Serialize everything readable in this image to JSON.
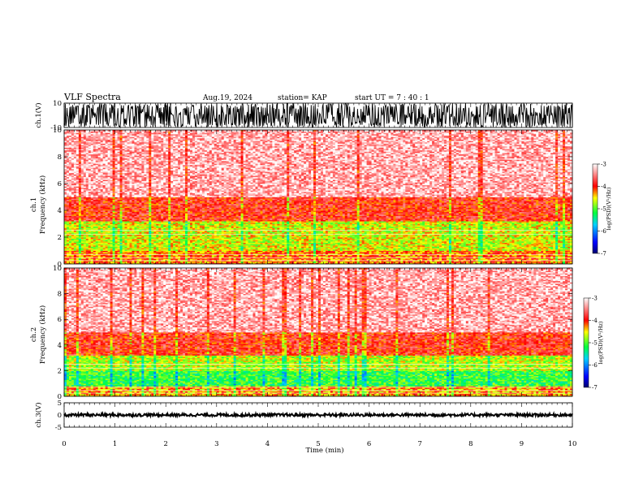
{
  "header": {
    "title": "VLF Spectra",
    "date": "Aug.19, 2024",
    "station": "station= KAP",
    "start": "start  UT =   7 : 40 : 1"
  },
  "chart_data": [
    {
      "type": "line",
      "panel": "ch1-waveform",
      "ylabel": "ch.1(V)",
      "ylim": [
        -10,
        10
      ],
      "yticks": [
        {
          "v": 10,
          "label": "10"
        },
        {
          "v": -10,
          "label": "-10"
        }
      ],
      "xlim": [
        0,
        10
      ],
      "description_values": {
        "amplitude_range": [
          -10,
          10
        ]
      }
    },
    {
      "type": "heatmap",
      "panel": "ch1-spectrogram",
      "ylabel": "ch.1\nFrequency (kHz)",
      "ylabel_line1": "ch.1",
      "ylabel_line2": "Frequency  (kHz)",
      "ylim": [
        0,
        10
      ],
      "yticks": [
        "0",
        "2",
        "4",
        "6",
        "8",
        "10"
      ],
      "xlim": [
        0,
        10
      ],
      "bands": [
        {
          "f": [
            0.0,
            1.0
          ],
          "log_psd": -4.2
        },
        {
          "f": [
            1.0,
            3.2
          ],
          "log_psd": -4.6
        },
        {
          "f": [
            3.2,
            5.0
          ],
          "log_psd": -3.9
        },
        {
          "f": [
            5.0,
            10.0
          ],
          "log_psd": -3.3
        }
      ],
      "colorbar": {
        "label": "log(PSD)(V²/Hz)",
        "range": [
          -7,
          -3
        ],
        "ticks": [
          "-3",
          "-4",
          "-5",
          "-6",
          "-7"
        ]
      }
    },
    {
      "type": "heatmap",
      "panel": "ch2-spectrogram",
      "ylabel_line1": "ch.2",
      "ylabel_line2": "Frequency  (kHz)",
      "ylim": [
        0,
        10
      ],
      "yticks": [
        "0",
        "2",
        "4",
        "6",
        "8",
        "10"
      ],
      "xlim": [
        0,
        10
      ],
      "bands": [
        {
          "f": [
            0.0,
            0.8
          ],
          "log_psd": -4.3
        },
        {
          "f": [
            0.8,
            2.0
          ],
          "log_psd": -5.1
        },
        {
          "f": [
            2.0,
            3.2
          ],
          "log_psd": -4.7
        },
        {
          "f": [
            3.2,
            5.0
          ],
          "log_psd": -3.9
        },
        {
          "f": [
            5.0,
            10.0
          ],
          "log_psd": -3.3
        }
      ],
      "colorbar": {
        "label": "log(PSD)(V²/Hz)",
        "range": [
          -7,
          -3
        ],
        "ticks": [
          "-3",
          "-4",
          "-5",
          "-6",
          "-7"
        ]
      }
    },
    {
      "type": "line",
      "panel": "ch3-waveform",
      "ylabel": "ch.3(V)",
      "ylim": [
        -5,
        5
      ],
      "yticks": [
        {
          "v": 5,
          "label": "5"
        },
        {
          "v": 0,
          "label": "0"
        },
        {
          "v": -5,
          "label": "-5"
        }
      ],
      "xlim": [
        0,
        10
      ],
      "description_values": {
        "amplitude_range": [
          -0.6,
          0.6
        ]
      }
    }
  ],
  "xaxis": {
    "label": "Time  (min)",
    "range": [
      0,
      10
    ],
    "ticks": [
      "0",
      "1",
      "2",
      "3",
      "4",
      "5",
      "6",
      "7",
      "8",
      "9",
      "10"
    ]
  },
  "colors": {
    "waveform": "#000000",
    "colormap": [
      "#000080",
      "#0000ff",
      "#00c8ff",
      "#00ff40",
      "#ffff00",
      "#ff0000",
      "#ffffff"
    ]
  }
}
